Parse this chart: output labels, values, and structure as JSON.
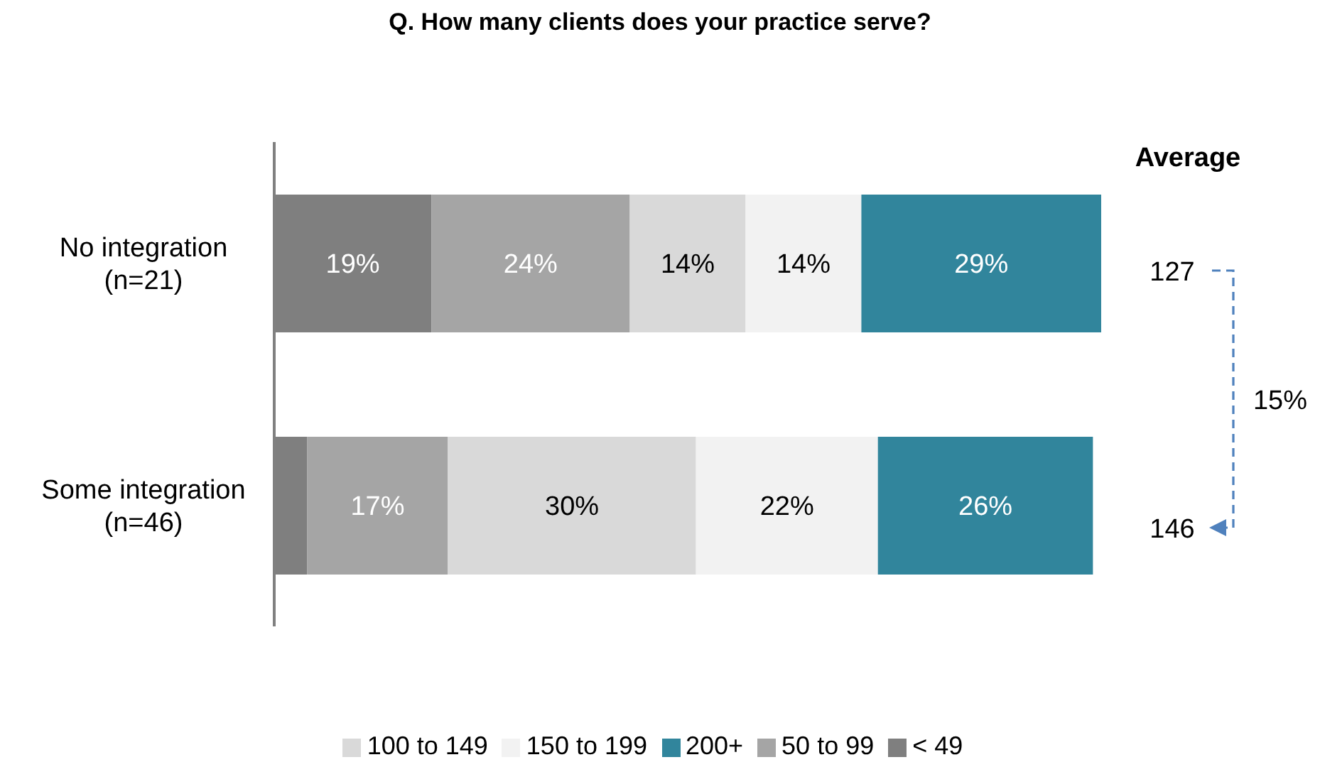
{
  "chart_data": {
    "type": "bar",
    "orientation": "horizontal",
    "stacked": true,
    "title": "Q. How many clients does your practice serve?",
    "categories": [
      "No integration\n(n=21)",
      "Some integration\n(n=46)"
    ],
    "series": [
      {
        "name": "< 49",
        "color": "#7f7f7f",
        "values": [
          19,
          4
        ],
        "value_labels": [
          "19%",
          null
        ]
      },
      {
        "name": "50 to 99",
        "color": "#a5a5a5",
        "values": [
          24,
          17
        ],
        "value_labels": [
          "24%",
          "17%"
        ]
      },
      {
        "name": "100 to 149",
        "color": "#d9d9d9",
        "values": [
          14,
          30
        ],
        "value_labels": [
          "14%",
          "30%"
        ]
      },
      {
        "name": "150 to 199",
        "color": "#f2f2f2",
        "values": [
          14,
          22
        ],
        "value_labels": [
          "14%",
          "22%"
        ]
      },
      {
        "name": "200+",
        "color": "#31859c",
        "values": [
          29,
          26
        ],
        "value_labels": [
          "29%",
          "26%"
        ]
      }
    ],
    "annotations": [
      "Average",
      "127",
      "146",
      "15%"
    ],
    "legend": "bottom"
  }
}
